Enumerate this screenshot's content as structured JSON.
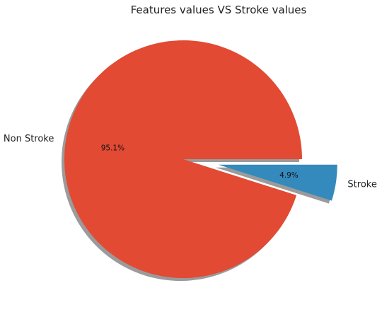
{
  "chart_data": {
    "type": "pie",
    "title": "Features values VS Stroke values",
    "labels": [
      "Non Stroke",
      "Stroke"
    ],
    "values": [
      95.1,
      4.9
    ],
    "percent_labels": [
      "95.1%",
      "4.9%"
    ],
    "explode": [
      0,
      0.3
    ],
    "colors": [
      "#E24A33",
      "#348ABD"
    ],
    "shadow": true,
    "start_angle": 0
  }
}
